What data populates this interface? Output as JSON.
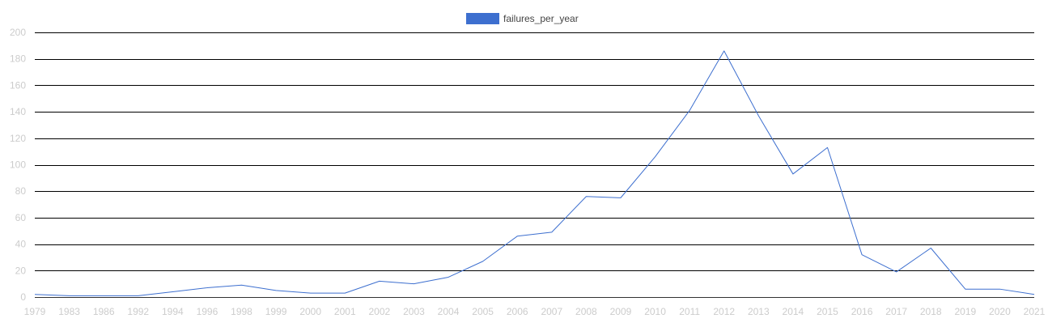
{
  "chart_data": {
    "type": "line",
    "title": "",
    "xlabel": "",
    "ylabel": "",
    "ylim": [
      0,
      200
    ],
    "yticks": [
      0,
      20,
      40,
      60,
      80,
      100,
      120,
      140,
      160,
      180,
      200
    ],
    "grid": true,
    "legend_position": "top-center",
    "categories": [
      "1979",
      "1983",
      "1986",
      "1992",
      "1994",
      "1996",
      "1998",
      "1999",
      "2000",
      "2001",
      "2002",
      "2003",
      "2004",
      "2005",
      "2006",
      "2007",
      "2008",
      "2009",
      "2010",
      "2011",
      "2012",
      "2013",
      "2014",
      "2015",
      "2016",
      "2017",
      "2018",
      "2019",
      "2020",
      "2021"
    ],
    "series": [
      {
        "name": "failures_per_year",
        "color": "#3d6fcf",
        "values": [
          2,
          1,
          1,
          1,
          4,
          7,
          9,
          5,
          3,
          3,
          12,
          10,
          15,
          27,
          46,
          49,
          76,
          75,
          106,
          141,
          186,
          137,
          93,
          113,
          32,
          19,
          37,
          6,
          6,
          2
        ]
      }
    ]
  }
}
